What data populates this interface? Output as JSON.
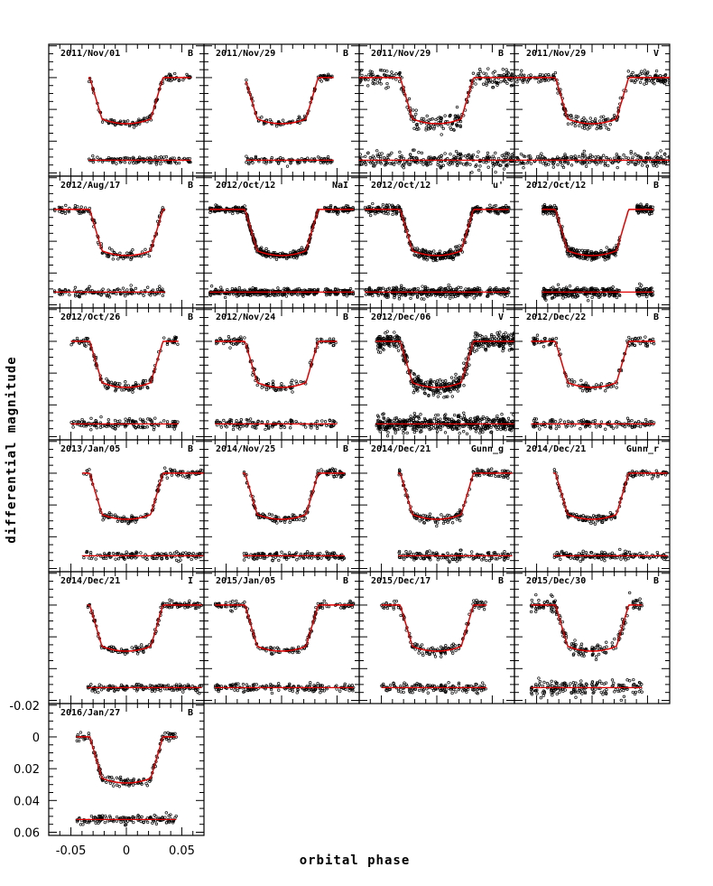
{
  "chart_data": {
    "type": "scatter",
    "title": "",
    "xlabel": "orbital phase",
    "ylabel": "differential magnitude",
    "xlim": [
      -0.07,
      0.07
    ],
    "ylim": [
      0.062,
      -0.021
    ],
    "xticks": [
      "-0.05",
      "0",
      "0.05"
    ],
    "xtick_values": [
      -0.05,
      0,
      0.05
    ],
    "yticks": [
      "-0.02",
      "0",
      "0.02",
      "0.04",
      "0.06"
    ],
    "ytick_values": [
      -0.02,
      0,
      0.02,
      0.04,
      0.06
    ],
    "model_color": "#e00000",
    "point_color": "#000000",
    "panels": [
      {
        "date": "2011/Nov/01",
        "band": "B",
        "phase_range": [
          -0.034,
          0.058
        ],
        "noise": 0.0012,
        "density": 120
      },
      {
        "date": "2011/Nov/29",
        "band": "B",
        "phase_range": [
          -0.032,
          0.047
        ],
        "noise": 0.001,
        "density": 100
      },
      {
        "date": "2011/Nov/29",
        "band": "B",
        "phase_range": [
          -0.07,
          0.07
        ],
        "noise": 0.0025,
        "density": 260
      },
      {
        "date": "2011/Nov/29",
        "band": "V",
        "phase_range": [
          -0.07,
          0.07
        ],
        "noise": 0.002,
        "density": 240
      },
      {
        "date": "2012/Aug/17",
        "band": "B",
        "phase_range": [
          -0.065,
          0.035
        ],
        "noise": 0.0015,
        "density": 130
      },
      {
        "date": "2012/Oct/12",
        "band": "NaI",
        "phase_range": [
          -0.065,
          0.065
        ],
        "noise": 0.001,
        "density": 420,
        "gap": [
          0.033,
          0.038
        ]
      },
      {
        "date": "2012/Oct/12",
        "band": "u'",
        "phase_range": [
          -0.065,
          0.065
        ],
        "noise": 0.0015,
        "density": 420,
        "gap": [
          0.04,
          0.045
        ]
      },
      {
        "date": "2012/Oct/12",
        "band": "B",
        "phase_range": [
          -0.045,
          0.055
        ],
        "noise": 0.0015,
        "density": 400,
        "gap": [
          0.025,
          0.04
        ]
      },
      {
        "date": "2012/Oct/26",
        "band": "B",
        "phase_range": [
          -0.05,
          0.047
        ],
        "noise": 0.0015,
        "density": 140
      },
      {
        "date": "2012/Nov/24",
        "band": "B",
        "phase_range": [
          -0.06,
          0.05
        ],
        "noise": 0.0015,
        "density": 140
      },
      {
        "date": "2012/Dec/06",
        "band": "V",
        "phase_range": [
          -0.055,
          0.07
        ],
        "noise": 0.0025,
        "density": 500
      },
      {
        "date": "2012/Dec/22",
        "band": "B",
        "phase_range": [
          -0.055,
          0.057
        ],
        "noise": 0.0015,
        "density": 140
      },
      {
        "date": "2013/Jan/05",
        "band": "B",
        "phase_range": [
          -0.04,
          0.07
        ],
        "noise": 0.0012,
        "density": 140
      },
      {
        "date": "2014/Nov/25",
        "band": "B",
        "phase_range": [
          -0.035,
          0.057
        ],
        "noise": 0.0012,
        "density": 140
      },
      {
        "date": "2014/Dec/21",
        "band": "Gunn_g",
        "phase_range": [
          -0.035,
          0.068
        ],
        "noise": 0.0015,
        "density": 160
      },
      {
        "date": "2014/Dec/21",
        "band": "Gunn_r",
        "phase_range": [
          -0.035,
          0.068
        ],
        "noise": 0.0012,
        "density": 160
      },
      {
        "date": "2014/Dec/21",
        "band": "I",
        "phase_range": [
          -0.035,
          0.068
        ],
        "noise": 0.0012,
        "density": 160
      },
      {
        "date": "2015/Jan/05",
        "band": "B",
        "phase_range": [
          -0.06,
          0.065
        ],
        "noise": 0.0012,
        "density": 170
      },
      {
        "date": "2015/Dec/17",
        "band": "B",
        "phase_range": [
          -0.05,
          0.045
        ],
        "noise": 0.0015,
        "density": 140
      },
      {
        "date": "2015/Dec/30",
        "band": "B",
        "phase_range": [
          -0.055,
          0.045
        ],
        "noise": 0.0025,
        "density": 180
      },
      {
        "date": "2016/Jan/27",
        "band": "B",
        "phase_range": [
          -0.045,
          0.045
        ],
        "noise": 0.0015,
        "density": 140
      }
    ]
  }
}
